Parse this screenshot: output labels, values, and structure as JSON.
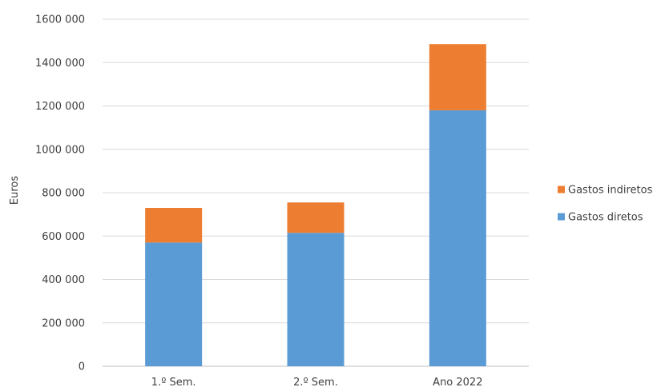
{
  "chart_data": {
    "type": "bar",
    "stacked": true,
    "categories": [
      "1.º Sem.",
      "2.º Sem.",
      "Ano 2022"
    ],
    "series": [
      {
        "name": "Gastos diretos",
        "color": "#5b9bd5",
        "values": [
          570000,
          615000,
          1180000
        ]
      },
      {
        "name": "Gastos indiretos",
        "color": "#ed7d31",
        "values": [
          160000,
          140000,
          305000
        ]
      }
    ],
    "xlabel": "",
    "ylabel": "Euros",
    "ylim": [
      0,
      1600000
    ],
    "yticks": [
      "0",
      "200 000",
      "400 000",
      "600 000",
      "800 000",
      "1000 000",
      "1200 000",
      "1400 000",
      "1600 000"
    ],
    "grid": true,
    "legend_position": "right",
    "legend_order": [
      "Gastos indiretos",
      "Gastos diretos"
    ]
  }
}
